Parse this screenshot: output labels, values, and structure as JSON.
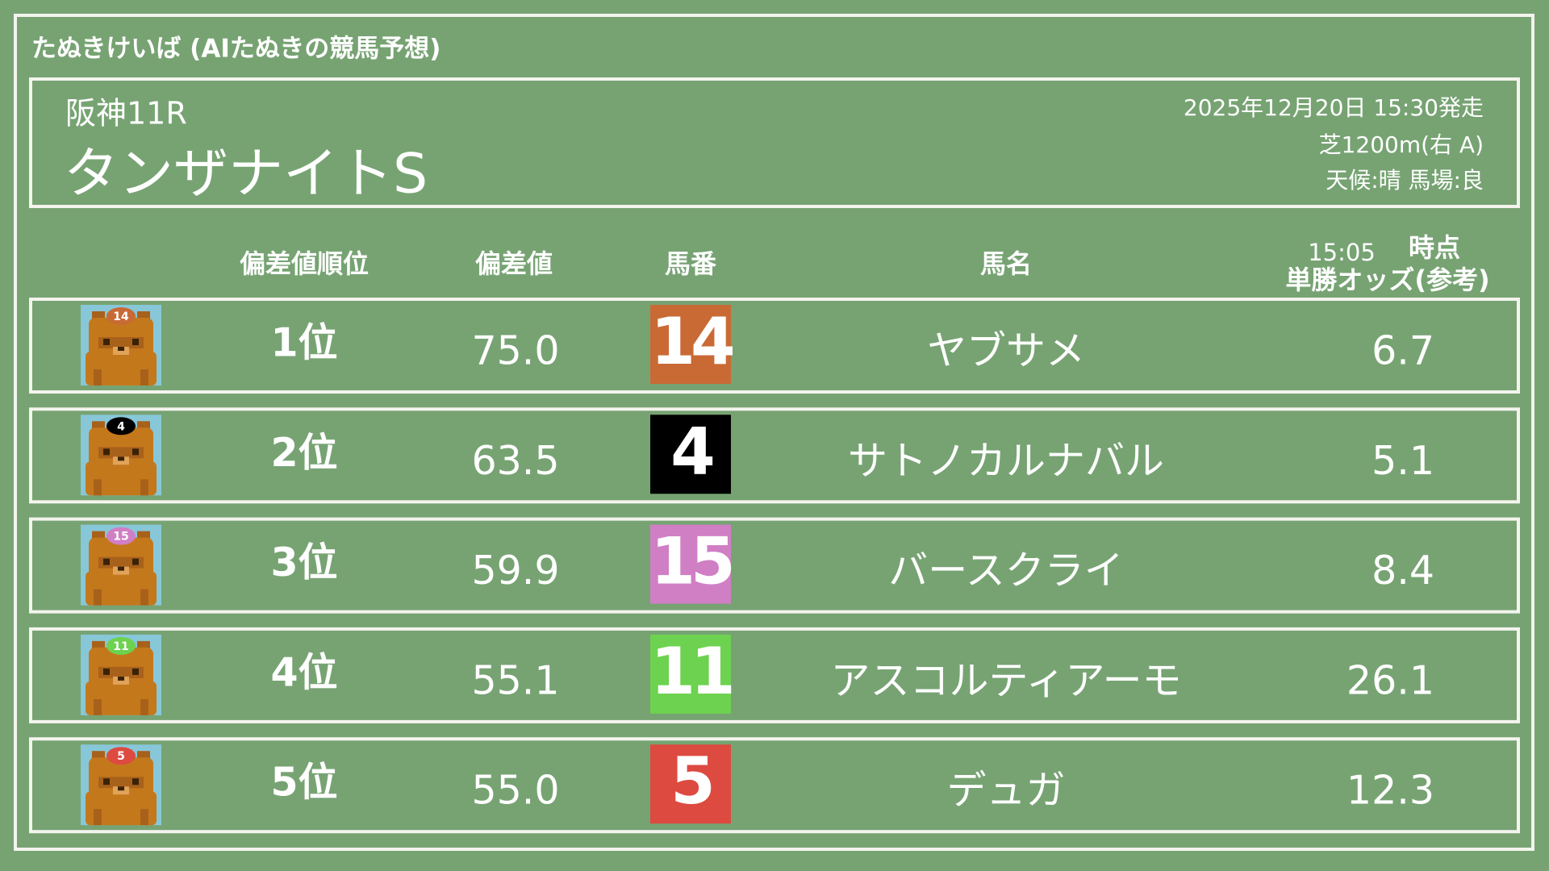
{
  "header": {
    "title": "たぬきけいば (AIたぬきの競馬予想)"
  },
  "race": {
    "venue": "阪神11R",
    "name": "タンザナイトS",
    "start": "2025年12月20日 15:30発走",
    "course": "芝1200m(右 A)",
    "conditions": "天候:晴 馬場:良"
  },
  "table": {
    "columns": [
      "偏差値順位",
      "偏差値",
      "馬番",
      "馬名"
    ],
    "odds_time": "15:05",
    "odds_time_suffix": "時点",
    "odds_label": "単勝オッズ(参考)",
    "rows": [
      {
        "rank": "1位",
        "score": "75.0",
        "number": "14",
        "number_color": "#c96a35",
        "number_text_color": "#111111",
        "name": "ヤブサメ",
        "odds": "6.7"
      },
      {
        "rank": "2位",
        "score": "63.5",
        "number": "4",
        "number_color": "#000000",
        "number_text_color": "#ffffff",
        "name": "サトノカルナバル",
        "odds": "5.1"
      },
      {
        "rank": "3位",
        "score": "59.9",
        "number": "15",
        "number_color": "#d07fc5",
        "number_text_color": "#111111",
        "name": "バースクライ",
        "odds": "8.4"
      },
      {
        "rank": "4位",
        "score": "55.1",
        "number": "11",
        "number_color": "#6dd24f",
        "number_text_color": "#111111",
        "name": "アスコルティアーモ",
        "odds": "26.1"
      },
      {
        "rank": "5位",
        "score": "55.0",
        "number": "5",
        "number_color": "#dd4a40",
        "number_text_color": "#111111",
        "name": "デュガ",
        "odds": "12.3"
      }
    ]
  }
}
